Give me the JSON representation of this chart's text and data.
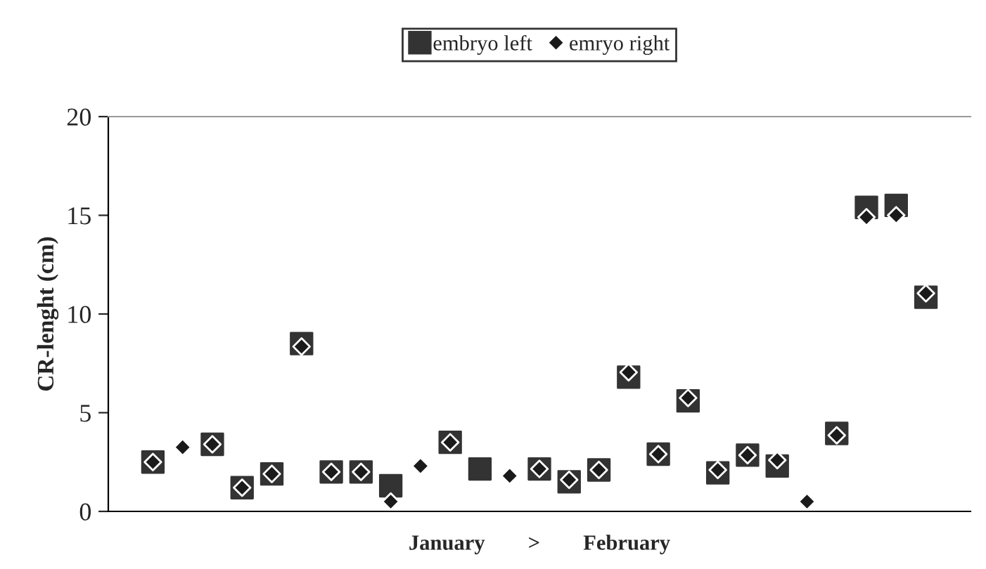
{
  "chart_data": {
    "type": "scatter",
    "xlabel": "January        >        February",
    "ylabel": "CR-lenght (cm)",
    "categories": [
      null,
      null,
      null,
      null,
      null,
      null,
      null,
      null,
      null,
      null,
      null,
      null,
      null,
      null,
      null,
      null,
      null,
      null,
      null,
      null,
      null,
      null,
      null,
      null,
      null,
      null,
      null,
      null,
      null
    ],
    "series": [
      {
        "name": "embryo left",
        "color": "#333333",
        "marker": "square",
        "values": [
          null,
          2.5,
          null,
          3.4,
          1.2,
          1.9,
          8.5,
          2.0,
          2.0,
          1.3,
          null,
          3.5,
          2.15,
          null,
          2.15,
          1.5,
          2.1,
          6.8,
          2.9,
          5.6,
          1.95,
          2.85,
          2.3,
          null,
          3.95,
          15.4,
          15.5,
          10.85,
          null
        ]
      },
      {
        "name": "emryo right",
        "color": "#1a1a1a",
        "marker": "diamond",
        "values": [
          null,
          2.5,
          3.25,
          3.4,
          1.2,
          1.9,
          8.35,
          2.0,
          2.0,
          0.5,
          2.3,
          3.5,
          null,
          1.8,
          2.15,
          1.6,
          2.1,
          7.05,
          2.9,
          5.75,
          2.1,
          2.85,
          2.6,
          0.5,
          3.85,
          14.9,
          15.0,
          11.05,
          null
        ]
      }
    ],
    "ylim": [
      0,
      20
    ],
    "yticks": [
      0,
      5,
      10,
      15,
      20
    ],
    "grid": false,
    "legend": "top",
    "tick_labels": "y"
  }
}
